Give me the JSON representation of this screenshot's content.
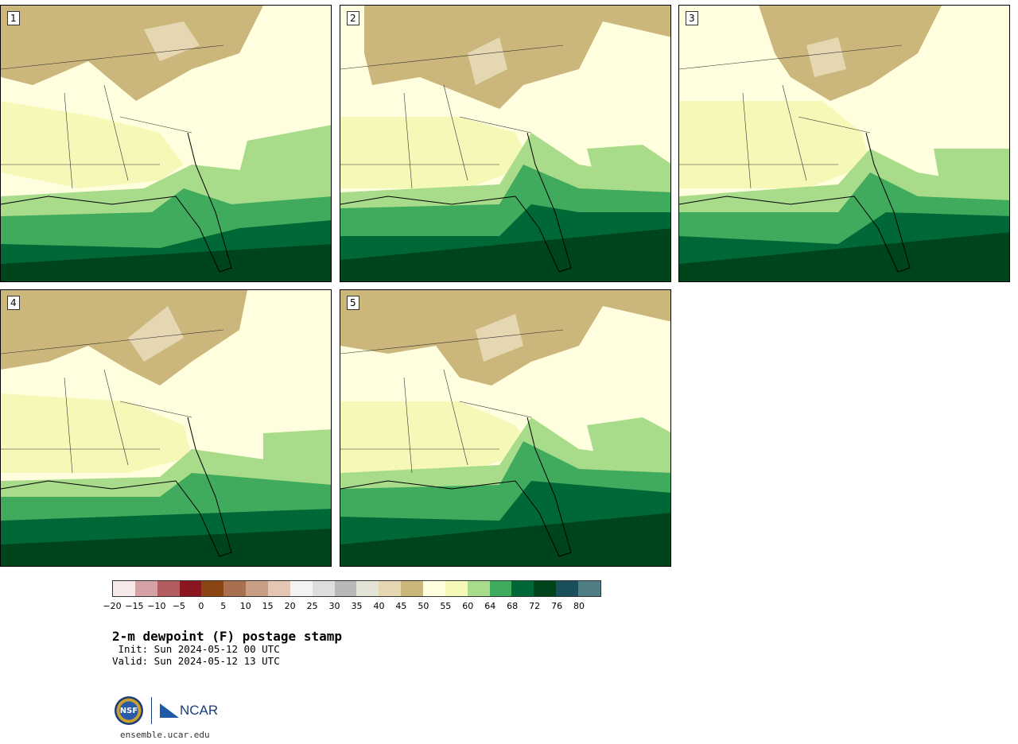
{
  "panels": [
    {
      "number": "1"
    },
    {
      "number": "2"
    },
    {
      "number": "3"
    },
    {
      "number": "4"
    },
    {
      "number": "5"
    }
  ],
  "colorbar": {
    "colors": [
      "#f7e9e9",
      "#d4a1a4",
      "#b35c62",
      "#8c1620",
      "#8a4512",
      "#a8704e",
      "#c89f84",
      "#e5c6b5",
      "#f3f3f3",
      "#dedede",
      "#b8b8b8",
      "#e4e4d6",
      "#e6d7b3",
      "#cbb67c",
      "#ffffe0",
      "#f6f8b8",
      "#a8dc8a",
      "#41ab5d",
      "#006837",
      "#00441b",
      "#1c4f5c",
      "#4f7f85"
    ],
    "tick_labels": [
      "−20",
      "−15",
      "−10",
      "−5",
      "0",
      "5",
      "10",
      "15",
      "20",
      "25",
      "30",
      "35",
      "40",
      "45",
      "50",
      "55",
      "60",
      "64",
      "68",
      "72",
      "76",
      "80"
    ]
  },
  "title": "2-m dewpoint (F) postage stamp",
  "init": " Init: Sun 2024-05-12 00 UTC",
  "valid": "Valid: Sun 2024-05-12 13 UTC",
  "logo": {
    "nsf_text": "NSF",
    "ncar_text": "NCAR"
  },
  "url": "ensemble.ucar.edu"
}
